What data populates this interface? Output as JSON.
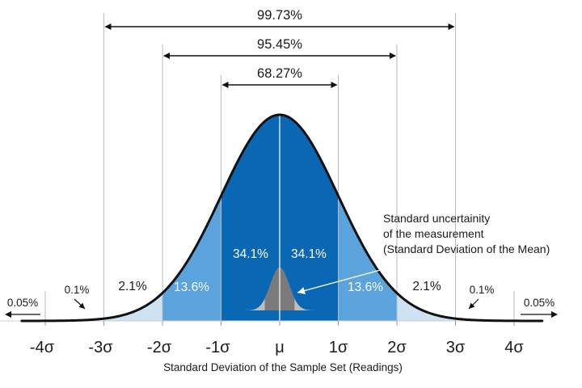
{
  "chart_data": {
    "type": "area",
    "title": "",
    "xlabel": "Standard Deviation of the Sample Set (Readings)",
    "ylabel": "",
    "xlim": [
      -4.4,
      4.5
    ],
    "x_ticks": [
      {
        "value": -4,
        "label": "-4σ"
      },
      {
        "value": -3,
        "label": "-3σ"
      },
      {
        "value": -2,
        "label": "-2σ"
      },
      {
        "value": -1,
        "label": "-1σ"
      },
      {
        "value": 0,
        "label": "μ"
      },
      {
        "value": 1,
        "label": "1σ"
      },
      {
        "value": 2,
        "label": "2σ"
      },
      {
        "value": 3,
        "label": "3σ"
      },
      {
        "value": 4,
        "label": "4σ"
      }
    ],
    "bands": [
      {
        "from": -1,
        "to": 0,
        "percent": "34.1%",
        "color": "#0a67b4"
      },
      {
        "from": 0,
        "to": 1,
        "percent": "34.1%",
        "color": "#0a67b4"
      },
      {
        "from": -2,
        "to": -1,
        "percent": "13.6%",
        "color": "#5ba3dc"
      },
      {
        "from": 1,
        "to": 2,
        "percent": "13.6%",
        "color": "#5ba3dc"
      },
      {
        "from": -3,
        "to": -2,
        "percent": "2.1%",
        "color": "#cfe2f3"
      },
      {
        "from": 2,
        "to": 3,
        "percent": "2.1%",
        "color": "#cfe2f3"
      },
      {
        "from": -4,
        "to": -3,
        "percent": "0.1%",
        "color": "#ffffff"
      },
      {
        "from": 3,
        "to": 4,
        "percent": "0.1%",
        "color": "#ffffff"
      }
    ],
    "tails": [
      {
        "side": "left",
        "percent": "0.05%"
      },
      {
        "side": "right",
        "percent": "0.05%"
      }
    ],
    "coverage_ranges": [
      {
        "k": 1,
        "percent": "68.27%"
      },
      {
        "k": 2,
        "percent": "95.45%"
      },
      {
        "k": 3,
        "percent": "99.73%"
      }
    ],
    "annotation": {
      "lines": [
        "Standard uncertainity",
        "of the measurement",
        "(Standard Deviation of the Mean)"
      ]
    },
    "colors": {
      "curve": "#111111",
      "grid": "#bbbbbb",
      "mean_inner_dark": "#7a7a7a",
      "mean_inner_light": "#bdbdbd"
    }
  }
}
